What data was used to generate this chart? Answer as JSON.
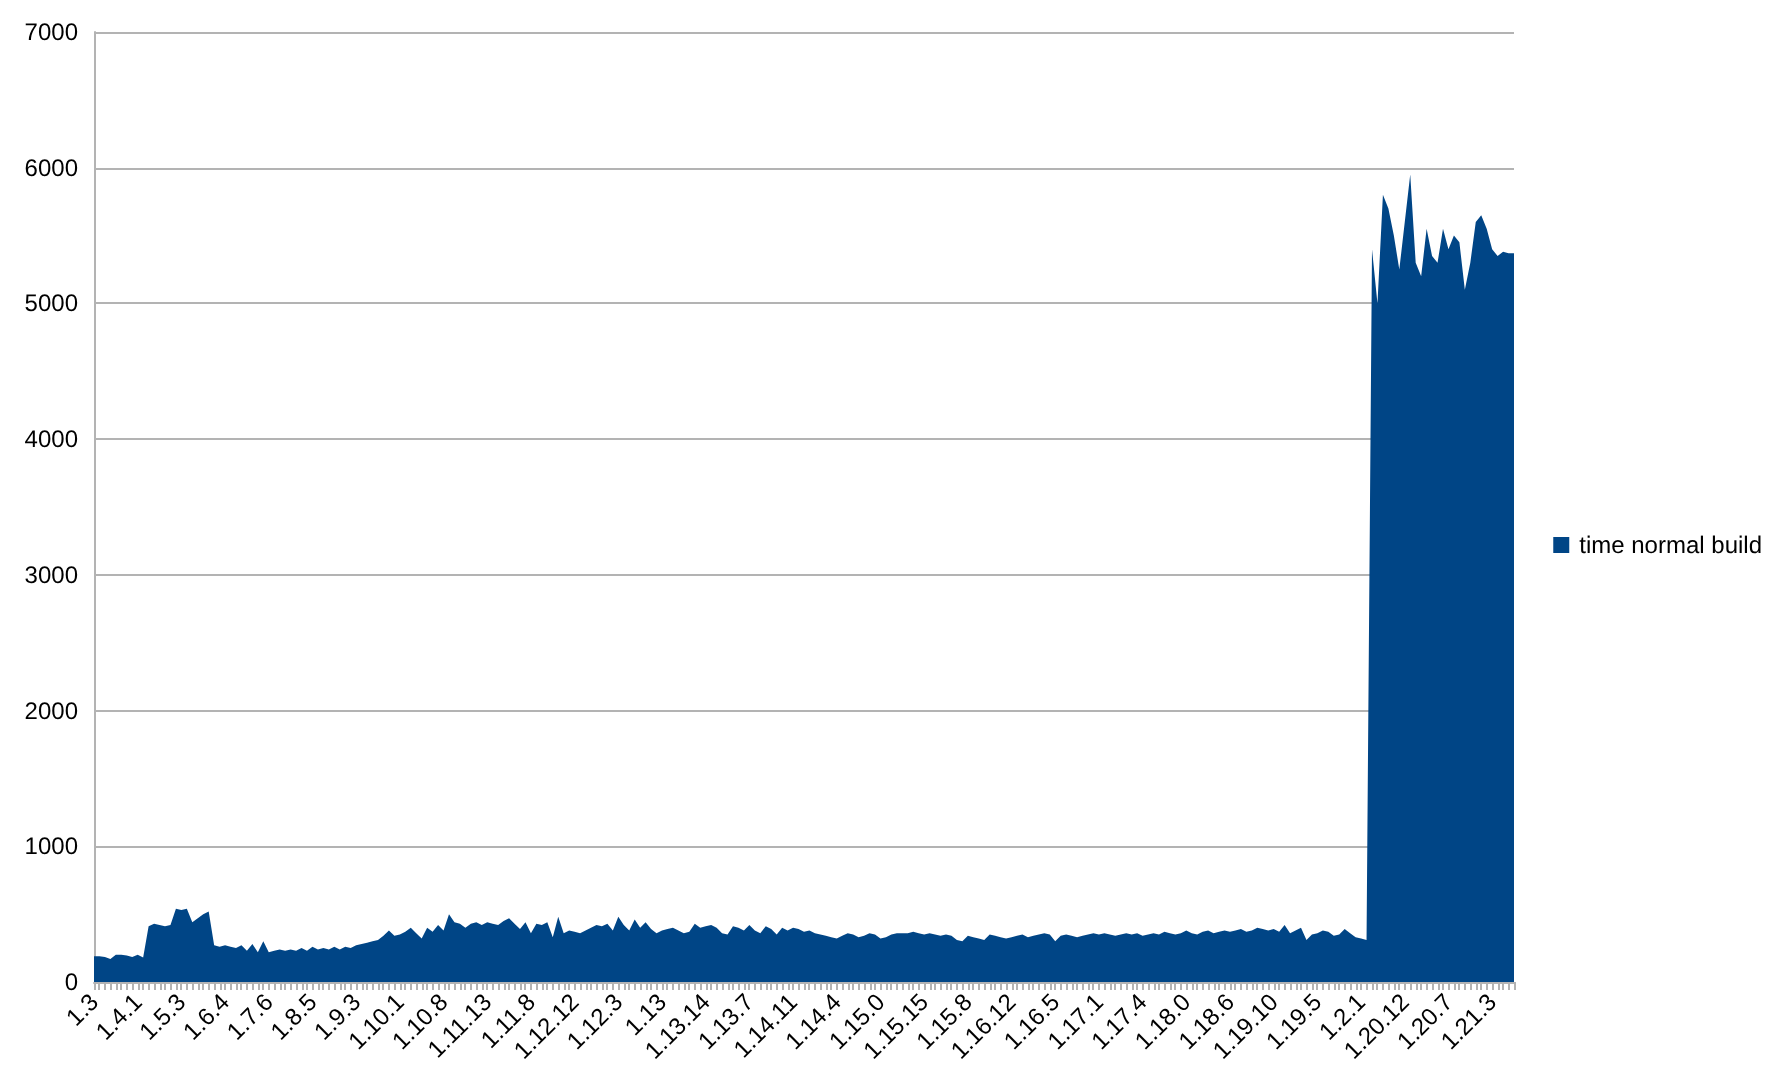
{
  "chart_data": {
    "type": "area",
    "categories": [
      "1.3",
      null,
      null,
      null,
      null,
      null,
      null,
      null,
      "1.4.1",
      null,
      null,
      null,
      null,
      null,
      null,
      null,
      "1.5.3",
      null,
      null,
      null,
      null,
      null,
      null,
      null,
      "1.6.4",
      null,
      null,
      null,
      null,
      null,
      null,
      null,
      "1.7.6",
      null,
      null,
      null,
      null,
      null,
      null,
      null,
      "1.8.5",
      null,
      null,
      null,
      null,
      null,
      null,
      null,
      "1.9.3",
      null,
      null,
      null,
      null,
      null,
      null,
      null,
      "1.10.1",
      null,
      null,
      null,
      null,
      null,
      null,
      null,
      "1.10.8",
      null,
      null,
      null,
      null,
      null,
      null,
      null,
      "1.11.13",
      null,
      null,
      null,
      null,
      null,
      null,
      null,
      "1.11.8",
      null,
      null,
      null,
      null,
      null,
      null,
      null,
      "1.12.12",
      null,
      null,
      null,
      null,
      null,
      null,
      null,
      "1.12.3",
      null,
      null,
      null,
      null,
      null,
      null,
      null,
      "1.13",
      null,
      null,
      null,
      null,
      null,
      null,
      null,
      "1.13.14",
      null,
      null,
      null,
      null,
      null,
      null,
      null,
      "1.13.7",
      null,
      null,
      null,
      null,
      null,
      null,
      null,
      "1.14.11",
      null,
      null,
      null,
      null,
      null,
      null,
      null,
      "1.14.4",
      null,
      null,
      null,
      null,
      null,
      null,
      null,
      "1.15.0",
      null,
      null,
      null,
      null,
      null,
      null,
      null,
      "1.15.15",
      null,
      null,
      null,
      null,
      null,
      null,
      null,
      "1.15.8",
      null,
      null,
      null,
      null,
      null,
      null,
      null,
      "1.16.12",
      null,
      null,
      null,
      null,
      null,
      null,
      null,
      "1.16.5",
      null,
      null,
      null,
      null,
      null,
      null,
      null,
      "1.17.1",
      null,
      null,
      null,
      null,
      null,
      null,
      null,
      "1.17.4",
      null,
      null,
      null,
      null,
      null,
      null,
      null,
      "1.18.0",
      null,
      null,
      null,
      null,
      null,
      null,
      null,
      "1.18.6",
      null,
      null,
      null,
      null,
      null,
      null,
      null,
      "1.19.10",
      null,
      null,
      null,
      null,
      null,
      null,
      null,
      "1.19.5",
      null,
      null,
      null,
      null,
      null,
      null,
      null,
      "1.2.1",
      null,
      null,
      null,
      null,
      null,
      null,
      null,
      "1.20.12",
      null,
      null,
      null,
      null,
      null,
      null,
      null,
      "1.20.7",
      null,
      null,
      null,
      null,
      null,
      null,
      null,
      "1.21.3",
      null,
      null,
      null,
      null
    ],
    "series": [
      {
        "name": "time normal build",
        "color": "#004586",
        "values": [
          190,
          190,
          185,
          170,
          200,
          200,
          195,
          185,
          200,
          180,
          410,
          430,
          420,
          410,
          420,
          540,
          530,
          540,
          440,
          470,
          500,
          520,
          270,
          260,
          270,
          260,
          250,
          270,
          230,
          280,
          220,
          300,
          220,
          230,
          240,
          230,
          240,
          230,
          250,
          230,
          260,
          240,
          250,
          240,
          260,
          240,
          260,
          250,
          270,
          280,
          290,
          300,
          310,
          340,
          380,
          340,
          350,
          370,
          400,
          360,
          320,
          400,
          370,
          420,
          380,
          500,
          440,
          430,
          400,
          430,
          440,
          420,
          440,
          430,
          420,
          450,
          470,
          430,
          390,
          440,
          360,
          430,
          420,
          440,
          330,
          480,
          360,
          380,
          370,
          360,
          380,
          400,
          420,
          410,
          430,
          380,
          480,
          420,
          380,
          460,
          400,
          440,
          390,
          360,
          380,
          390,
          400,
          380,
          360,
          370,
          430,
          400,
          410,
          420,
          400,
          360,
          350,
          410,
          400,
          380,
          420,
          380,
          360,
          410,
          390,
          350,
          400,
          380,
          400,
          390,
          370,
          380,
          360,
          350,
          340,
          330,
          320,
          340,
          360,
          350,
          330,
          340,
          360,
          350,
          320,
          330,
          350,
          360,
          360,
          360,
          370,
          360,
          350,
          360,
          350,
          340,
          350,
          340,
          310,
          300,
          340,
          330,
          320,
          310,
          350,
          340,
          330,
          320,
          330,
          340,
          350,
          330,
          340,
          350,
          360,
          350,
          300,
          340,
          350,
          340,
          330,
          340,
          350,
          360,
          350,
          360,
          350,
          340,
          350,
          360,
          350,
          360,
          340,
          350,
          360,
          350,
          370,
          360,
          350,
          360,
          380,
          360,
          350,
          370,
          380,
          360,
          370,
          380,
          370,
          380,
          390,
          370,
          380,
          400,
          390,
          380,
          390,
          370,
          420,
          360,
          380,
          400,
          310,
          350,
          360,
          380,
          370,
          340,
          350,
          390,
          360,
          330,
          320,
          310,
          5400,
          5000,
          5800,
          5700,
          5500,
          5250,
          5600,
          5950,
          5300,
          5200,
          5550,
          5350,
          5300,
          5550,
          5400,
          5500,
          5450,
          5100,
          5300,
          5600,
          5650,
          5550,
          5400,
          5350,
          5380,
          5370,
          5370
        ]
      }
    ],
    "ylim": [
      0,
      7000
    ],
    "yticks": [
      0,
      1000,
      2000,
      3000,
      4000,
      5000,
      6000,
      7000
    ],
    "grid": "y",
    "legend": "right"
  }
}
